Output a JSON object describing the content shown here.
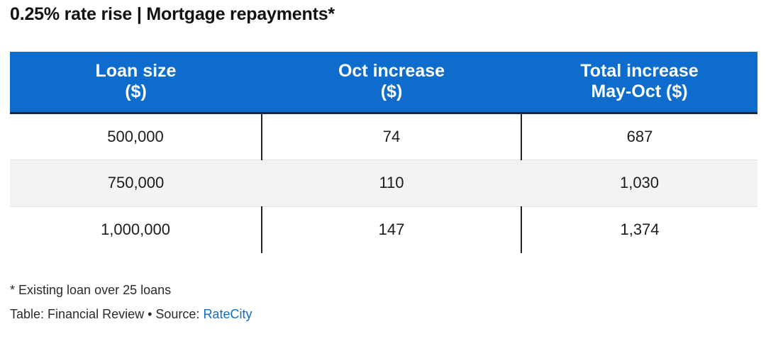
{
  "chart_data": {
    "type": "table",
    "title": "0.25% rate rise | Mortgage repayments*",
    "columns": [
      {
        "line1": "Loan size",
        "line2": "($)"
      },
      {
        "line1": "Oct increase",
        "line2": "($)"
      },
      {
        "line1": "Total increase",
        "line2": "May-Oct ($)"
      }
    ],
    "rows": [
      [
        "500,000",
        "74",
        "687"
      ],
      [
        "750,000",
        "110",
        "1,030"
      ],
      [
        "1,000,000",
        "147",
        "1,374"
      ]
    ]
  },
  "footnote": "* Existing loan over 25 loans",
  "credit": {
    "prefix": "Table: Financial Review • Source: ",
    "source_link": "RateCity"
  },
  "colors": {
    "header_background": "#0d6ccc",
    "header_text": "#ffffff",
    "alt_row": "#f3f3f3",
    "link": "#0d6ccc"
  }
}
